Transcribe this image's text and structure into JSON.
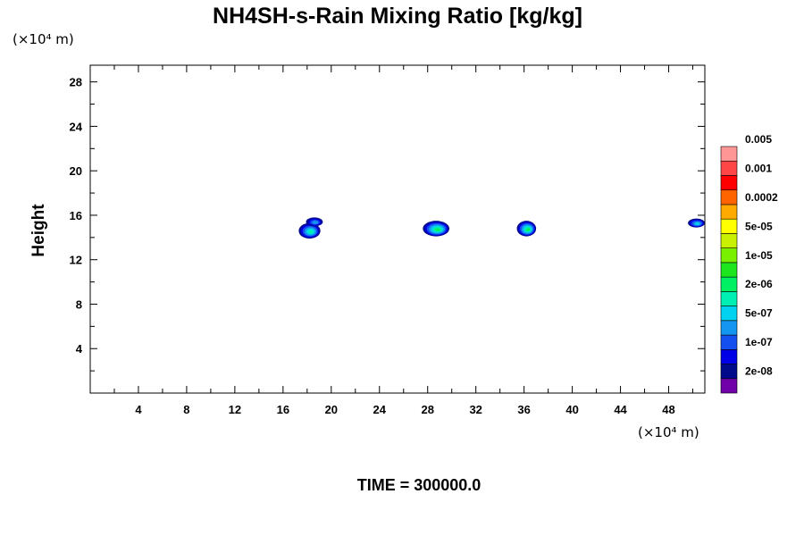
{
  "chart_data": {
    "type": "heatmap",
    "title": "NH4SH-s-Rain Mixing Ratio [kg/kg]",
    "ylabel": "Height",
    "x_unit": "(×10⁴ m)",
    "y_unit": "(×10⁴ m)",
    "footer": "TIME = 300000.0",
    "xlim": [
      0,
      51
    ],
    "ylim": [
      0,
      29.5
    ],
    "x_ticks": [
      "4",
      "8",
      "12",
      "16",
      "20",
      "24",
      "28",
      "32",
      "36",
      "40",
      "44",
      "48"
    ],
    "x_tick_values": [
      4,
      8,
      12,
      16,
      20,
      24,
      28,
      32,
      36,
      40,
      44,
      48
    ],
    "y_ticks": [
      "4",
      "8",
      "12",
      "16",
      "20",
      "24",
      "28"
    ],
    "y_tick_values": [
      4,
      8,
      12,
      16,
      20,
      24,
      28
    ],
    "colorbar": {
      "colors": [
        "#7000a8",
        "#000a8a",
        "#0000e6",
        "#1450f0",
        "#1496f0",
        "#00d2f0",
        "#00f0b4",
        "#00f064",
        "#1ee61e",
        "#78f000",
        "#c8f000",
        "#ffff00",
        "#ffaa00",
        "#ff6400",
        "#ff0000",
        "#ff4646",
        "#ff9696"
      ],
      "labels": [
        "2e-08",
        "1e-07",
        "5e-07",
        "2e-06",
        "1e-05",
        "5e-05",
        "0.0002",
        "0.001",
        "0.005"
      ]
    },
    "features": [
      {
        "x": 18.2,
        "y": 14.6,
        "rx": 0.9,
        "ry": 0.7,
        "peak": 6
      },
      {
        "x": 18.6,
        "y": 15.4,
        "rx": 0.7,
        "ry": 0.4,
        "peak": 4
      },
      {
        "x": 28.7,
        "y": 14.8,
        "rx": 1.1,
        "ry": 0.7,
        "peak": 7
      },
      {
        "x": 36.2,
        "y": 14.8,
        "rx": 0.8,
        "ry": 0.7,
        "peak": 7
      },
      {
        "x": 50.3,
        "y": 15.3,
        "rx": 0.7,
        "ry": 0.4,
        "peak": 5
      }
    ]
  }
}
